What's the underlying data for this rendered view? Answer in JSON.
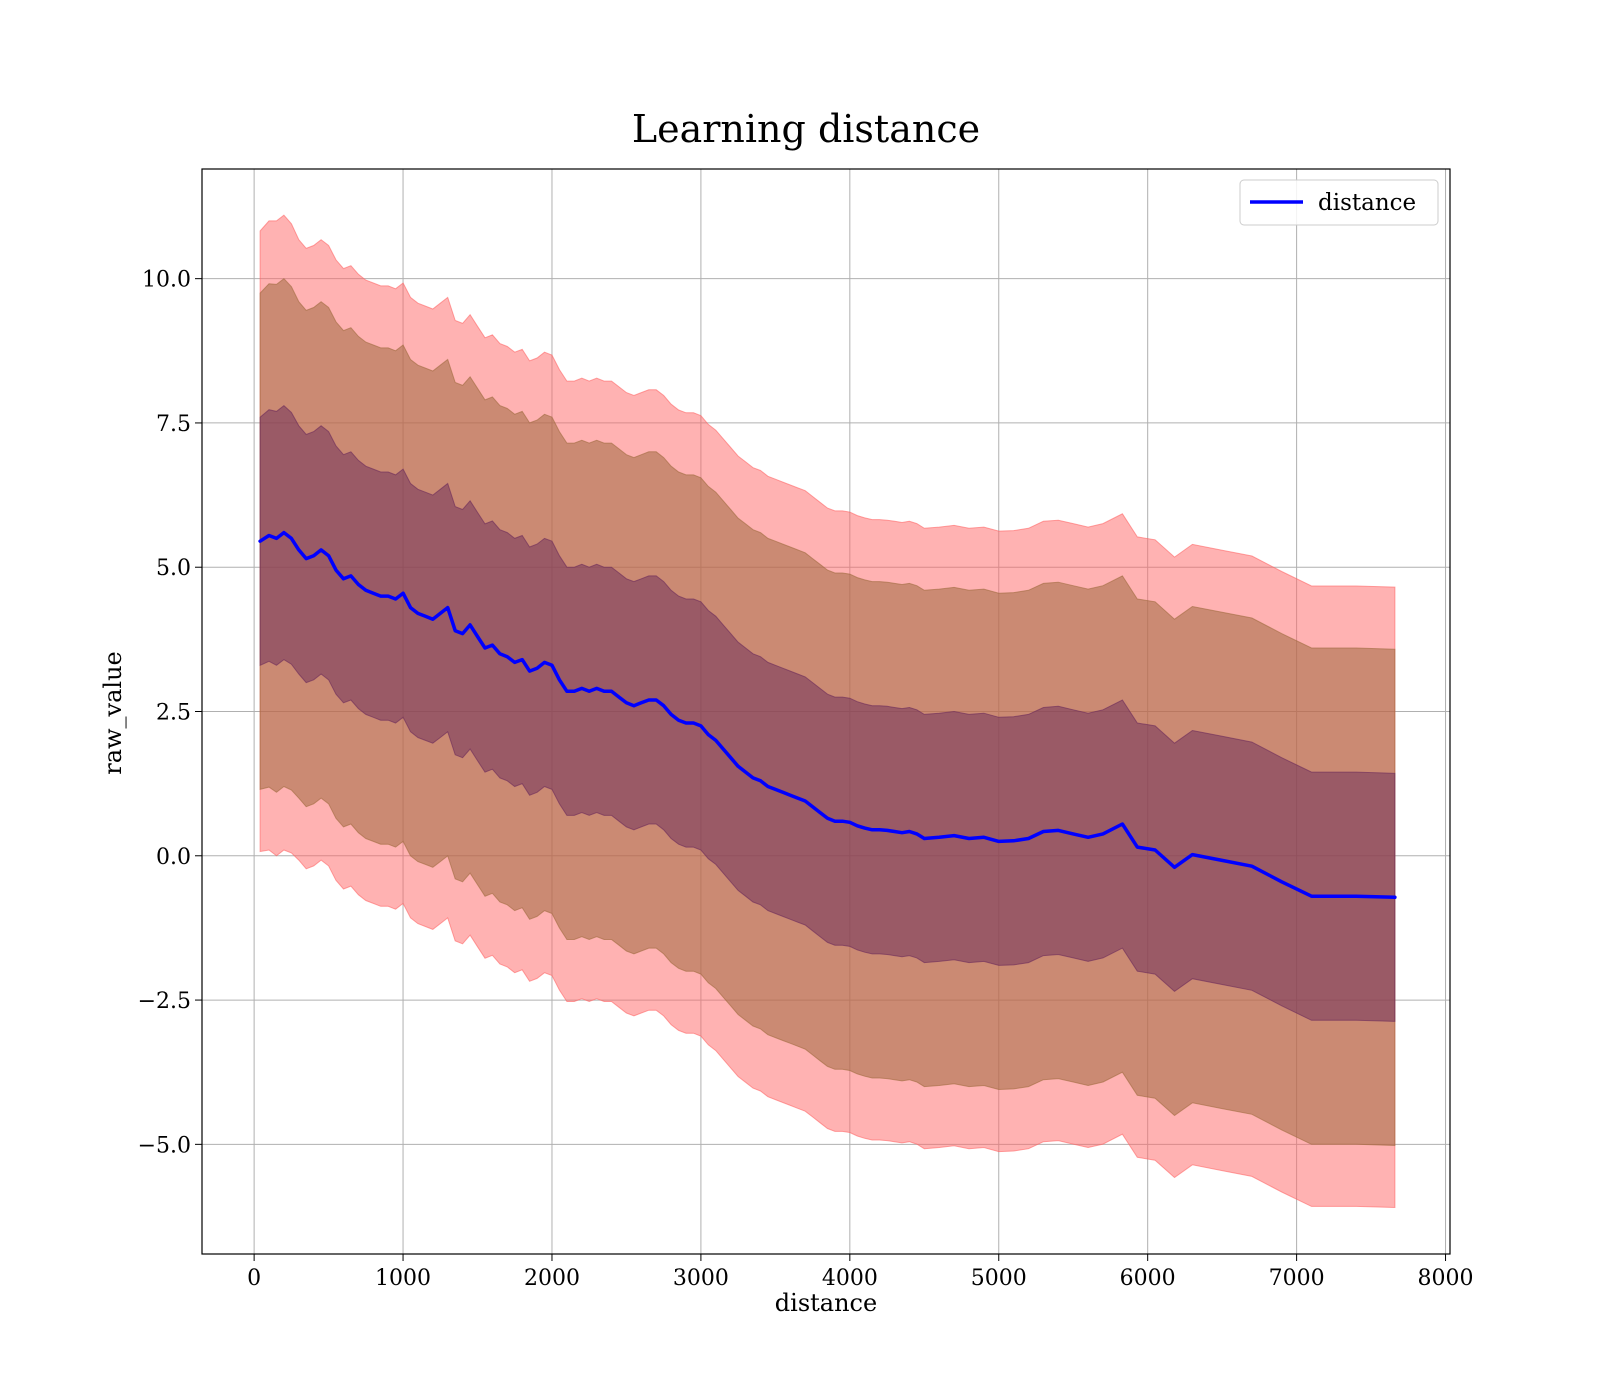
{
  "chart_data": {
    "type": "line",
    "title": "Learning distance",
    "xlabel": "distance",
    "ylabel": "raw_value",
    "xlim": [
      -350,
      8030
    ],
    "ylim": [
      -6.9,
      11.9
    ],
    "grid": true,
    "legend_position": "top-right",
    "x_ticks": [
      0,
      1000,
      2000,
      3000,
      4000,
      5000,
      6000,
      7000,
      8000
    ],
    "x_tick_labels": [
      "0",
      "1000",
      "2000",
      "3000",
      "4000",
      "5000",
      "6000",
      "7000",
      "8000"
    ],
    "y_ticks": [
      -5.0,
      -2.5,
      0.0,
      2.5,
      5.0,
      7.5,
      10.0
    ],
    "y_tick_labels": [
      "−5.0",
      "−2.5",
      "0.0",
      "2.5",
      "5.0",
      "7.5",
      "10.0"
    ],
    "colors": {
      "mean_line": "#0000ff",
      "band_outer": "#ff6666",
      "band_middle": "#a06a40",
      "band_inner": "#6a2a5a",
      "grid": "#b0b0b0"
    },
    "series": [
      {
        "name": "distance",
        "x": [
          40,
          100,
          150,
          200,
          250,
          300,
          350,
          400,
          450,
          500,
          550,
          600,
          650,
          700,
          750,
          800,
          850,
          900,
          950,
          1000,
          1050,
          1100,
          1150,
          1200,
          1250,
          1300,
          1350,
          1400,
          1450,
          1500,
          1550,
          1600,
          1650,
          1700,
          1750,
          1800,
          1850,
          1900,
          1950,
          2000,
          2050,
          2100,
          2150,
          2200,
          2250,
          2300,
          2350,
          2400,
          2450,
          2500,
          2550,
          2600,
          2650,
          2700,
          2750,
          2800,
          2850,
          2900,
          2950,
          3000,
          3050,
          3100,
          3150,
          3200,
          3250,
          3300,
          3350,
          3400,
          3450,
          3500,
          3550,
          3600,
          3650,
          3700,
          3750,
          3800,
          3850,
          3900,
          3950,
          4000,
          4050,
          4100,
          4150,
          4200,
          4250,
          4300,
          4350,
          4400,
          4450,
          4500,
          4600,
          4700,
          4800,
          4900,
          5000,
          5100,
          5200,
          5300,
          5400,
          5500,
          5600,
          5700,
          5830,
          5930,
          6050,
          6180,
          6300,
          6500,
          6700,
          6900,
          7100,
          7400,
          7660
        ],
        "values": [
          5.45,
          5.55,
          5.5,
          5.6,
          5.5,
          5.3,
          5.15,
          5.2,
          5.3,
          5.2,
          4.95,
          4.8,
          4.85,
          4.7,
          4.6,
          4.55,
          4.5,
          4.5,
          4.45,
          4.55,
          4.3,
          4.2,
          4.15,
          4.1,
          4.2,
          4.3,
          3.9,
          3.85,
          4.0,
          3.8,
          3.6,
          3.65,
          3.5,
          3.45,
          3.35,
          3.4,
          3.2,
          3.25,
          3.35,
          3.3,
          3.05,
          2.85,
          2.85,
          2.9,
          2.85,
          2.9,
          2.85,
          2.85,
          2.75,
          2.65,
          2.6,
          2.65,
          2.7,
          2.7,
          2.6,
          2.45,
          2.35,
          2.3,
          2.3,
          2.25,
          2.1,
          2.0,
          1.85,
          1.7,
          1.55,
          1.45,
          1.35,
          1.3,
          1.2,
          1.15,
          1.1,
          1.05,
          1.0,
          0.95,
          0.85,
          0.75,
          0.65,
          0.6,
          0.6,
          0.58,
          0.52,
          0.48,
          0.45,
          0.45,
          0.44,
          0.42,
          0.4,
          0.42,
          0.38,
          0.3,
          0.32,
          0.35,
          0.3,
          0.32,
          0.25,
          0.26,
          0.3,
          0.42,
          0.44,
          0.38,
          0.32,
          0.38,
          0.55,
          0.15,
          0.1,
          -0.2,
          0.02,
          -0.08,
          -0.18,
          -0.45,
          -0.7,
          -0.7,
          -0.72
        ],
        "std": [
          2.15,
          2.18,
          2.2,
          2.2,
          2.18,
          2.15,
          2.15,
          2.15,
          2.15,
          2.15,
          2.15,
          2.15,
          2.15,
          2.15,
          2.15,
          2.15,
          2.15,
          2.15,
          2.15,
          2.15,
          2.15,
          2.15,
          2.15,
          2.15,
          2.15,
          2.15,
          2.15,
          2.15,
          2.15,
          2.15,
          2.15,
          2.15,
          2.15,
          2.15,
          2.15,
          2.15,
          2.15,
          2.15,
          2.15,
          2.15,
          2.15,
          2.15,
          2.15,
          2.15,
          2.15,
          2.15,
          2.15,
          2.15,
          2.15,
          2.15,
          2.15,
          2.15,
          2.15,
          2.15,
          2.15,
          2.15,
          2.15,
          2.15,
          2.15,
          2.15,
          2.15,
          2.15,
          2.15,
          2.15,
          2.15,
          2.15,
          2.15,
          2.15,
          2.15,
          2.15,
          2.15,
          2.15,
          2.15,
          2.15,
          2.15,
          2.15,
          2.15,
          2.15,
          2.15,
          2.15,
          2.15,
          2.15,
          2.15,
          2.15,
          2.15,
          2.15,
          2.15,
          2.15,
          2.15,
          2.15,
          2.15,
          2.15,
          2.15,
          2.15,
          2.15,
          2.15,
          2.15,
          2.15,
          2.15,
          2.15,
          2.15,
          2.15,
          2.15,
          2.15,
          2.15,
          2.15,
          2.15,
          2.15,
          2.15,
          2.15,
          2.15,
          2.15,
          2.15
        ],
        "bands": [
          1,
          2,
          2.5
        ]
      }
    ]
  }
}
